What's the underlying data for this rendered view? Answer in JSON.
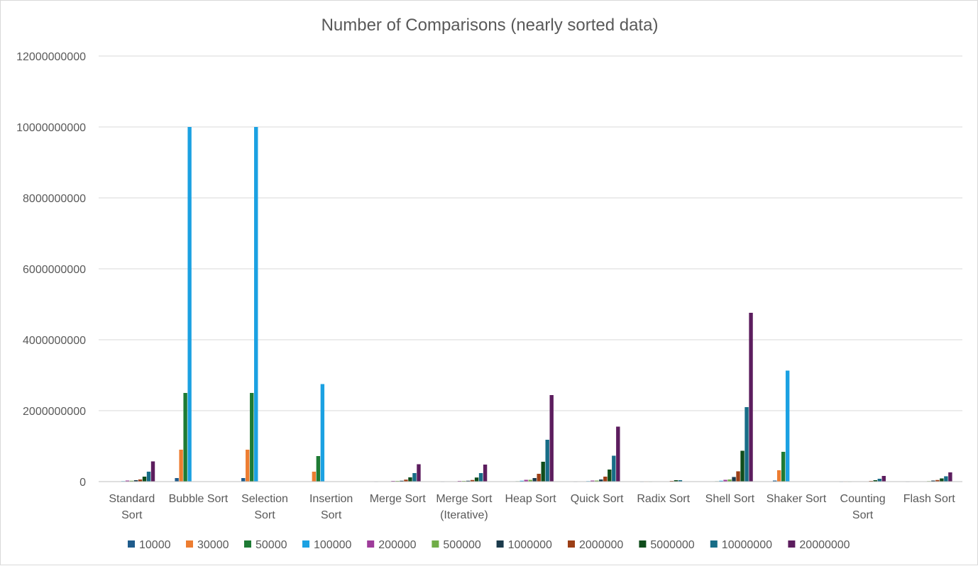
{
  "chart_data": {
    "type": "bar",
    "title": "Number of Comparisons (nearly sorted data)",
    "xlabel": "",
    "ylabel": "",
    "ylim": [
      0,
      12000000000
    ],
    "yticks": [
      0,
      2000000000,
      4000000000,
      6000000000,
      8000000000,
      10000000000,
      12000000000
    ],
    "ytick_labels": [
      "0",
      "2000000000",
      "4000000000",
      "6000000000",
      "8000000000",
      "10000000000",
      "12000000000"
    ],
    "grid": true,
    "legend_position": "bottom",
    "categories": [
      [
        "Standard",
        "Sort"
      ],
      [
        "Bubble Sort"
      ],
      [
        "Selection",
        "Sort"
      ],
      [
        "Insertion",
        "Sort"
      ],
      [
        "Merge Sort"
      ],
      [
        "Merge Sort",
        "(Iterative)"
      ],
      [
        "Heap Sort"
      ],
      [
        "Quick Sort"
      ],
      [
        "Radix Sort"
      ],
      [
        "Shell Sort"
      ],
      [
        "Shaker Sort"
      ],
      [
        "Counting",
        "Sort"
      ],
      [
        "Flash Sort"
      ]
    ],
    "series": [
      {
        "name": "10000",
        "color": "#1f5c8c",
        "values": [
          2000000,
          100000000,
          100000000,
          3000000,
          1000000,
          1000000,
          2000000,
          1000000,
          500000,
          2000000,
          30000000,
          500000,
          1000000
        ]
      },
      {
        "name": "30000",
        "color": "#ed7d31",
        "values": [
          5000000,
          900000000,
          900000000,
          280000000,
          3000000,
          3000000,
          8000000,
          5000000,
          1000000,
          8000000,
          320000000,
          1000000,
          2000000
        ]
      },
      {
        "name": "50000",
        "color": "#1e7b34",
        "values": [
          8000000,
          2500000000,
          2500000000,
          720000000,
          5000000,
          5000000,
          12000000,
          8000000,
          1000000,
          12000000,
          840000000,
          1000000,
          3000000
        ]
      },
      {
        "name": "100000",
        "color": "#1ba1e2",
        "values": [
          15000000,
          10000000000,
          10000000000,
          2750000000,
          10000000,
          10000000,
          25000000,
          15000000,
          2000000,
          25000000,
          3130000000,
          2000000,
          5000000
        ]
      },
      {
        "name": "200000",
        "color": "#9e3c9a",
        "values": [
          30000000,
          0,
          0,
          0,
          20000000,
          20000000,
          50000000,
          30000000,
          4000000,
          50000000,
          0,
          4000000,
          10000000
        ]
      },
      {
        "name": "500000",
        "color": "#70ad47",
        "values": [
          25000000,
          0,
          0,
          0,
          20000000,
          20000000,
          50000000,
          30000000,
          5000000,
          60000000,
          0,
          5000000,
          15000000
        ]
      },
      {
        "name": "1000000",
        "color": "#1b3a4b",
        "values": [
          40000000,
          0,
          0,
          0,
          25000000,
          25000000,
          100000000,
          60000000,
          10000000,
          130000000,
          0,
          10000000,
          30000000
        ]
      },
      {
        "name": "2000000",
        "color": "#9c3f16",
        "values": [
          60000000,
          0,
          0,
          0,
          55000000,
          45000000,
          220000000,
          140000000,
          20000000,
          290000000,
          0,
          20000000,
          45000000
        ]
      },
      {
        "name": "5000000",
        "color": "#0f4d1b",
        "values": [
          140000000,
          0,
          0,
          0,
          120000000,
          115000000,
          560000000,
          340000000,
          40000000,
          870000000,
          0,
          40000000,
          90000000
        ]
      },
      {
        "name": "10000000",
        "color": "#176d87",
        "values": [
          280000000,
          0,
          0,
          0,
          240000000,
          240000000,
          1180000000,
          730000000,
          40000000,
          2100000000,
          0,
          80000000,
          150000000
        ]
      },
      {
        "name": "20000000",
        "color": "#5c1d5e",
        "values": [
          570000000,
          0,
          0,
          0,
          490000000,
          480000000,
          2440000000,
          1550000000,
          0,
          4760000000,
          0,
          160000000,
          260000000
        ]
      }
    ]
  }
}
